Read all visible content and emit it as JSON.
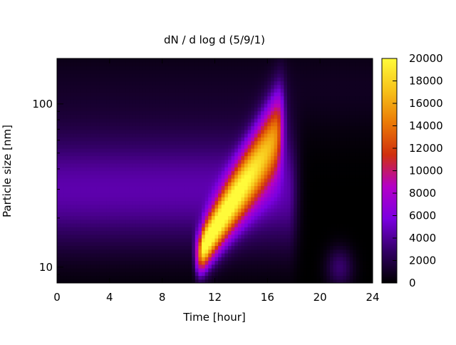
{
  "chart_data": {
    "type": "heatmap",
    "title": "dN / d log d (5/9/1)",
    "xlabel": "Time [hour]",
    "ylabel": "Particle size [nm]",
    "x_range": [
      0,
      24
    ],
    "x_ticks": [
      0,
      4,
      8,
      12,
      16,
      20,
      24
    ],
    "y_scale": "log",
    "y_range": [
      8,
      190
    ],
    "y_ticks": [
      10,
      100
    ],
    "colorbar": {
      "range": [
        0,
        20000
      ],
      "ticks": [
        0,
        2000,
        4000,
        6000,
        8000,
        10000,
        12000,
        14000,
        16000,
        18000,
        20000
      ],
      "palette": "black-purple-red-yellow"
    },
    "palette_stops": [
      "#000000",
      "#330066",
      "#7b00e0",
      "#b400c8",
      "#d0300e",
      "#eb7a06",
      "#f7c21a",
      "#fffb3a"
    ],
    "features": [
      {
        "label": "background mode",
        "time_range": [
          0,
          17.5
        ],
        "size_nm": 30,
        "peak": 4500
      },
      {
        "label": "nucleation / growth event",
        "start_time": 10.8,
        "start_size_nm": 10,
        "end_time": 17,
        "end_size_nm": 60,
        "peak": 19000
      },
      {
        "label": "evening burst",
        "time": 21.5,
        "size_nm": 10,
        "peak": 3000
      }
    ]
  }
}
